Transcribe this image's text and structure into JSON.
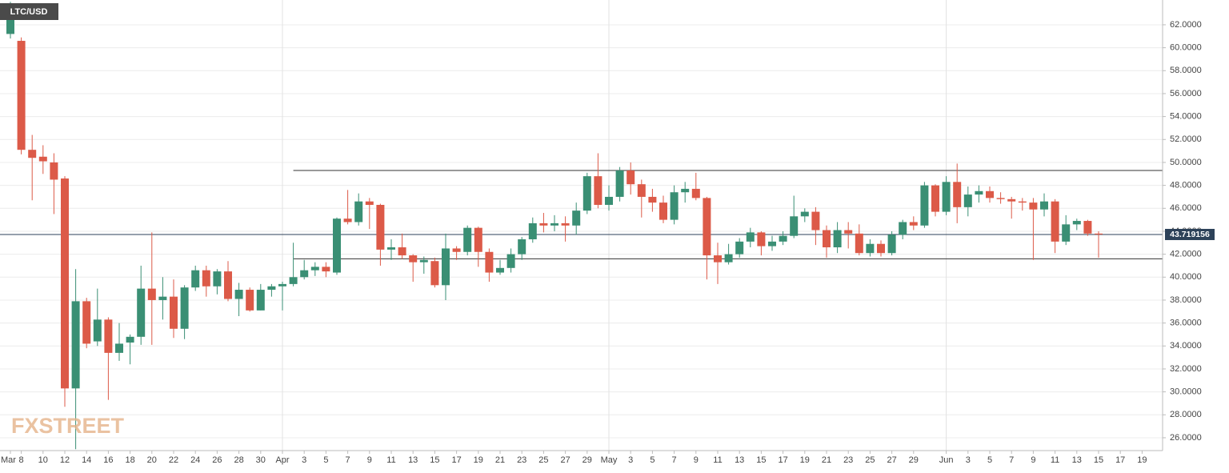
{
  "chart_data": {
    "type": "candlestick",
    "title": "LTC/USD",
    "watermark": "FXSTREET",
    "categories": [
      "Mar 7",
      "Mar 8",
      "Mar 9",
      "Mar 10",
      "Mar 11",
      "Mar 12",
      "Mar 13",
      "Mar 14",
      "Mar 15",
      "Mar 16",
      "Mar 17",
      "Mar 18",
      "Mar 19",
      "Mar 20",
      "Mar 21",
      "Mar 22",
      "Mar 23",
      "Mar 24",
      "Mar 25",
      "Mar 26",
      "Mar 27",
      "Mar 28",
      "Mar 29",
      "Mar 30",
      "Mar 31",
      "Apr 1",
      "Apr 2",
      "Apr 3",
      "Apr 4",
      "Apr 5",
      "Apr 6",
      "Apr 7",
      "Apr 8",
      "Apr 9",
      "Apr 10",
      "Apr 11",
      "Apr 12",
      "Apr 13",
      "Apr 14",
      "Apr 15",
      "Apr 16",
      "Apr 17",
      "Apr 18",
      "Apr 19",
      "Apr 20",
      "Apr 21",
      "Apr 22",
      "Apr 23",
      "Apr 24",
      "Apr 25",
      "Apr 26",
      "Apr 27",
      "Apr 28",
      "Apr 29",
      "Apr 30",
      "May 1",
      "May 2",
      "May 3",
      "May 4",
      "May 5",
      "May 6",
      "May 7",
      "May 8",
      "May 9",
      "May 10",
      "May 11",
      "May 12",
      "May 13",
      "May 14",
      "May 15",
      "May 16",
      "May 17",
      "May 18",
      "May 19",
      "May 20",
      "May 21",
      "May 22",
      "May 23",
      "May 24",
      "May 25",
      "May 26",
      "May 27",
      "May 28",
      "May 29",
      "May 30",
      "May 31",
      "Jun 1",
      "Jun 2",
      "Jun 3",
      "Jun 4",
      "Jun 5",
      "Jun 6",
      "Jun 7",
      "Jun 8",
      "Jun 9",
      "Jun 10",
      "Jun 11",
      "Jun 12",
      "Jun 13",
      "Jun 14",
      "Jun 15",
      "Jun 16",
      "Jun 17",
      "Jun 18",
      "Jun 19",
      "Jun 20"
    ],
    "open": [
      61.2,
      60.6,
      51.1,
      50.5,
      50.0,
      48.6,
      30.3,
      37.9,
      34.4,
      36.3,
      33.4,
      34.3,
      34.8,
      39.0,
      38.0,
      38.3,
      35.5,
      39.1,
      40.6,
      39.2,
      40.5,
      38.1,
      38.9,
      37.1,
      38.9,
      39.2,
      39.4,
      40.0,
      40.6,
      40.9,
      40.4,
      45.1,
      44.8,
      46.6,
      46.3,
      42.4,
      42.6,
      41.9,
      41.3,
      41.4,
      39.3,
      42.5,
      42.2,
      44.3,
      42.2,
      40.4,
      40.8,
      42.0,
      43.3,
      44.7,
      44.5,
      44.7,
      44.5,
      45.8,
      48.8,
      46.3,
      47.0,
      49.3,
      48.1,
      47.0,
      46.5,
      45.0,
      47.4,
      47.7,
      46.9,
      41.9,
      41.3,
      42.0,
      43.1,
      43.9,
      42.7,
      43.1,
      43.6,
      45.3,
      45.7,
      44.1,
      42.6,
      44.1,
      43.8,
      42.1,
      42.9,
      42.1,
      43.7,
      44.8,
      44.5,
      48.0,
      45.7,
      48.3,
      46.1,
      47.2,
      47.5,
      46.9,
      46.8,
      46.6,
      46.5,
      45.9,
      46.6,
      43.1,
      44.6,
      44.9,
      43.8,
      null,
      null,
      null,
      null,
      null
    ],
    "high": [
      64.0,
      60.9,
      52.4,
      51.5,
      50.8,
      48.8,
      40.7,
      38.2,
      39.0,
      36.5,
      36.0,
      35.0,
      41.0,
      43.9,
      40.0,
      39.8,
      39.3,
      41.0,
      41.0,
      40.7,
      41.4,
      39.5,
      39.1,
      39.4,
      39.4,
      39.6,
      43.0,
      41.5,
      41.3,
      41.3,
      45.2,
      47.6,
      47.3,
      46.9,
      46.4,
      43.3,
      43.8,
      42.0,
      41.8,
      41.7,
      43.8,
      42.7,
      44.5,
      44.4,
      42.5,
      41.5,
      42.5,
      43.5,
      45.2,
      45.6,
      45.4,
      45.3,
      46.5,
      49.1,
      50.8,
      48.0,
      49.6,
      50.0,
      48.5,
      47.7,
      47.1,
      48.0,
      48.3,
      49.1,
      47.0,
      43.0,
      42.9,
      43.4,
      44.3,
      44.0,
      43.6,
      44.0,
      47.1,
      46.0,
      46.1,
      44.5,
      44.8,
      44.8,
      44.6,
      43.3,
      43.2,
      44.0,
      45.0,
      45.3,
      48.3,
      48.1,
      48.8,
      49.9,
      47.9,
      48.0,
      47.9,
      47.4,
      47.0,
      46.9,
      46.9,
      47.3,
      46.8,
      45.4,
      45.1,
      45.0,
      44.0,
      null,
      null,
      null,
      null,
      null
    ],
    "low": [
      60.8,
      50.7,
      46.7,
      49.0,
      45.5,
      28.7,
      25.0,
      33.8,
      34.0,
      29.3,
      32.7,
      32.4,
      34.1,
      34.1,
      36.3,
      34.7,
      34.6,
      38.8,
      38.3,
      38.5,
      37.9,
      36.6,
      37.0,
      37.1,
      38.3,
      37.1,
      39.2,
      39.8,
      40.1,
      40.0,
      40.2,
      44.6,
      44.5,
      44.2,
      41.0,
      41.5,
      41.6,
      39.6,
      40.3,
      39.1,
      38.0,
      41.5,
      41.9,
      40.9,
      39.6,
      40.2,
      40.4,
      41.5,
      43.0,
      43.9,
      44.0,
      43.1,
      43.7,
      45.5,
      46.0,
      45.8,
      46.6,
      47.2,
      45.2,
      45.7,
      44.7,
      44.6,
      46.5,
      46.7,
      39.8,
      39.4,
      41.1,
      41.7,
      42.6,
      41.9,
      42.3,
      42.8,
      43.4,
      44.8,
      42.8,
      41.7,
      42.1,
      42.5,
      41.9,
      41.8,
      41.8,
      41.9,
      43.3,
      44.1,
      44.3,
      45.3,
      45.4,
      44.7,
      45.3,
      46.5,
      46.5,
      46.4,
      45.1,
      45.8,
      41.5,
      45.3,
      42.1,
      42.8,
      44.1,
      43.6,
      41.7,
      null,
      null,
      null,
      null,
      null
    ],
    "close": [
      63.6,
      51.1,
      50.4,
      50.1,
      48.5,
      30.3,
      37.9,
      34.2,
      36.3,
      33.4,
      34.2,
      34.8,
      39.0,
      38.0,
      38.3,
      35.5,
      39.1,
      40.6,
      39.2,
      40.5,
      38.1,
      38.9,
      37.1,
      38.9,
      39.2,
      39.4,
      40.0,
      40.6,
      40.9,
      40.5,
      45.1,
      44.8,
      46.6,
      46.3,
      42.4,
      42.6,
      41.9,
      41.3,
      41.5,
      39.3,
      42.5,
      42.2,
      44.3,
      42.2,
      40.4,
      40.8,
      42.0,
      43.3,
      44.7,
      44.5,
      44.7,
      44.5,
      45.8,
      48.8,
      46.3,
      47.0,
      49.3,
      48.1,
      47.0,
      46.5,
      45.0,
      47.4,
      47.7,
      46.9,
      41.9,
      41.3,
      42.0,
      43.1,
      43.9,
      42.7,
      43.1,
      43.6,
      45.3,
      45.7,
      44.1,
      42.6,
      44.1,
      43.8,
      42.1,
      42.9,
      42.1,
      43.7,
      44.8,
      44.5,
      48.0,
      45.7,
      48.3,
      46.1,
      47.2,
      47.5,
      46.9,
      46.8,
      46.6,
      46.5,
      45.9,
      46.6,
      43.1,
      44.6,
      44.9,
      43.8,
      43.72,
      null,
      null,
      null,
      null,
      null
    ],
    "up_color": "#3a8f74",
    "down_color": "#dc5a48",
    "levels": [
      {
        "value": 49.3,
        "start": "Apr 2"
      },
      {
        "value": 41.6,
        "start": "Apr 2"
      }
    ],
    "price_line": 43.719156,
    "ylim": [
      24.88,
      64.16
    ],
    "yticks": [
      {
        "value": 26,
        "label": "26.0000"
      },
      {
        "value": 28,
        "label": "28.0000"
      },
      {
        "value": 30,
        "label": "30.0000"
      },
      {
        "value": 32,
        "label": "32.0000"
      },
      {
        "value": 34,
        "label": "34.0000"
      },
      {
        "value": 36,
        "label": "36.0000"
      },
      {
        "value": 38,
        "label": "38.0000"
      },
      {
        "value": 40,
        "label": "40.0000"
      },
      {
        "value": 42,
        "label": "42.0000"
      },
      {
        "value": 44,
        "label": "44.0000"
      },
      {
        "value": 46,
        "label": "46.0000"
      },
      {
        "value": 48,
        "label": "48.0000"
      },
      {
        "value": 50,
        "label": "50.0000"
      },
      {
        "value": 52,
        "label": "52.0000"
      },
      {
        "value": 54,
        "label": "54.0000"
      },
      {
        "value": 56,
        "label": "56.0000"
      },
      {
        "value": 58,
        "label": "58.0000"
      },
      {
        "value": 60,
        "label": "60.0000"
      },
      {
        "value": 62,
        "label": "62.0000"
      }
    ],
    "xticks": [
      {
        "value": "Mar 7",
        "label": "Mar"
      },
      {
        "value": "Mar 8",
        "label": "8"
      },
      {
        "value": "Mar 10",
        "label": "10"
      },
      {
        "value": "Mar 12",
        "label": "12"
      },
      {
        "value": "Mar 14",
        "label": "14"
      },
      {
        "value": "Mar 16",
        "label": "16"
      },
      {
        "value": "Mar 18",
        "label": "18"
      },
      {
        "value": "Mar 20",
        "label": "20"
      },
      {
        "value": "Mar 22",
        "label": "22"
      },
      {
        "value": "Mar 24",
        "label": "24"
      },
      {
        "value": "Mar 26",
        "label": "26"
      },
      {
        "value": "Mar 28",
        "label": "28"
      },
      {
        "value": "Mar 30",
        "label": "30"
      },
      {
        "value": "Apr 1",
        "label": "Apr"
      },
      {
        "value": "Apr 3",
        "label": "3"
      },
      {
        "value": "Apr 5",
        "label": "5"
      },
      {
        "value": "Apr 7",
        "label": "7"
      },
      {
        "value": "Apr 9",
        "label": "9"
      },
      {
        "value": "Apr 11",
        "label": "11"
      },
      {
        "value": "Apr 13",
        "label": "13"
      },
      {
        "value": "Apr 15",
        "label": "15"
      },
      {
        "value": "Apr 17",
        "label": "17"
      },
      {
        "value": "Apr 19",
        "label": "19"
      },
      {
        "value": "Apr 21",
        "label": "21"
      },
      {
        "value": "Apr 23",
        "label": "23"
      },
      {
        "value": "Apr 25",
        "label": "25"
      },
      {
        "value": "Apr 27",
        "label": "27"
      },
      {
        "value": "Apr 29",
        "label": "29"
      },
      {
        "value": "May 1",
        "label": "May"
      },
      {
        "value": "May 3",
        "label": "3"
      },
      {
        "value": "May 5",
        "label": "5"
      },
      {
        "value": "May 7",
        "label": "7"
      },
      {
        "value": "May 9",
        "label": "9"
      },
      {
        "value": "May 11",
        "label": "11"
      },
      {
        "value": "May 13",
        "label": "13"
      },
      {
        "value": "May 15",
        "label": "15"
      },
      {
        "value": "May 17",
        "label": "17"
      },
      {
        "value": "May 19",
        "label": "19"
      },
      {
        "value": "May 21",
        "label": "21"
      },
      {
        "value": "May 23",
        "label": "23"
      },
      {
        "value": "May 25",
        "label": "25"
      },
      {
        "value": "May 27",
        "label": "27"
      },
      {
        "value": "May 29",
        "label": "29"
      },
      {
        "value": "Jun 1",
        "label": "Jun"
      },
      {
        "value": "Jun 3",
        "label": "3"
      },
      {
        "value": "Jun 5",
        "label": "5"
      },
      {
        "value": "Jun 7",
        "label": "7"
      },
      {
        "value": "Jun 9",
        "label": "9"
      },
      {
        "value": "Jun 11",
        "label": "11"
      },
      {
        "value": "Jun 13",
        "label": "13"
      },
      {
        "value": "Jun 15",
        "label": "15"
      },
      {
        "value": "Jun 17",
        "label": "17"
      },
      {
        "value": "Jun 19",
        "label": "19"
      }
    ],
    "grid": true
  }
}
